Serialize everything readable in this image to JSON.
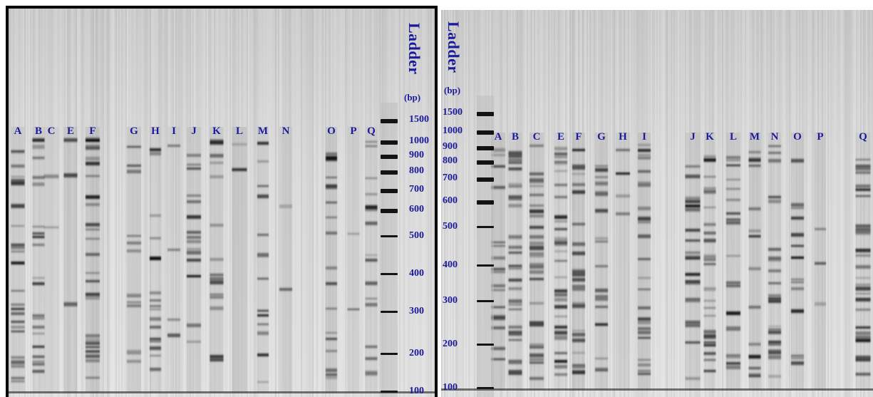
{
  "figure": {
    "left_gel": {
      "ladder_title": "Ladder",
      "unit": "(bp)",
      "lanes": [
        "A",
        "B",
        "C",
        "E",
        "F",
        "G",
        "H",
        "I",
        "J",
        "K",
        "L",
        "M",
        "N",
        "O",
        "P",
        "Q"
      ],
      "ladder_sizes": [
        "1500",
        "1000",
        "900",
        "800",
        "700",
        "600",
        "500",
        "400",
        "300",
        "200",
        "100"
      ]
    },
    "right_gel": {
      "ladder_title": "Ladder",
      "unit": "(bp)",
      "lanes": [
        "A",
        "B",
        "C",
        "E",
        "F",
        "G",
        "H",
        "I",
        "J",
        "K",
        "L",
        "M",
        "N",
        "O",
        "P",
        "Q"
      ],
      "ladder_sizes": [
        "1500",
        "1000",
        "900",
        "800",
        "700",
        "600",
        "500",
        "400",
        "300",
        "200",
        "100"
      ]
    }
  }
}
